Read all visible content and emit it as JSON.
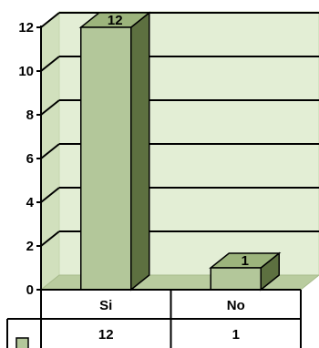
{
  "chart_data": {
    "type": "bar",
    "categories": [
      "Si",
      "No"
    ],
    "values": [
      12,
      1
    ],
    "data_labels": [
      "12",
      "1"
    ],
    "ylim": [
      0,
      12
    ],
    "yticks": [
      "0",
      "2",
      "4",
      "6",
      "8",
      "10",
      "12"
    ],
    "grid": true,
    "three_d": true,
    "data_table": true,
    "legend": "data-table",
    "colors": {
      "bar_front": "#b3c79a",
      "bar_side": "#5d7040",
      "bar_top": "#9cb47c",
      "wall": "#e3eed5",
      "wall_side": "#d1e0bd",
      "floor": "#b9cc9f",
      "legend_key": "#b3c79a"
    }
  }
}
